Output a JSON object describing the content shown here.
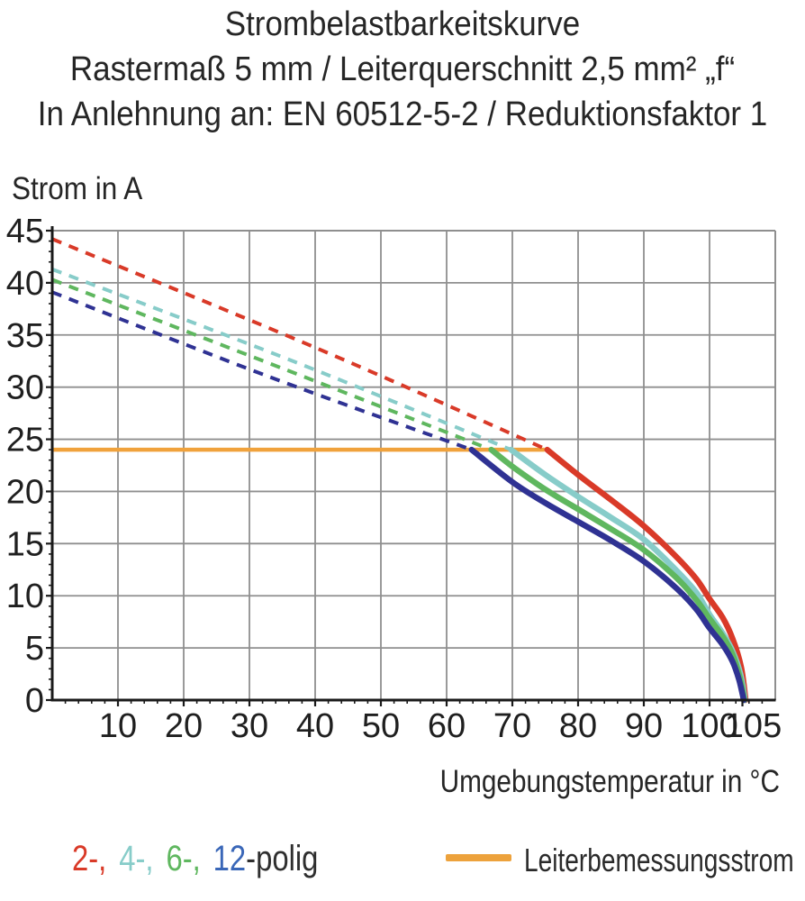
{
  "title": {
    "line1": "Strombelastbarkeitskurve",
    "line2": "Rastermaß 5 mm / Leiterquerschnitt 2,5 mm² „f“",
    "line3": "In Anlehnung an: EN 60512-5-2 / Reduktionsfaktor 1"
  },
  "axis": {
    "y_label": "Strom in A",
    "x_label": "Umgebungstemperatur in °C"
  },
  "legend": {
    "poles": [
      {
        "label": "2-,",
        "color": "#d93a28"
      },
      {
        "label": "4-,",
        "color": "#87ccc9"
      },
      {
        "label": "6-,",
        "color": "#5fb75f"
      },
      {
        "label": "12",
        "color": "#3a67b8"
      },
      {
        "label": "-polig",
        "color": "#2f2f2f"
      }
    ],
    "rated": {
      "label": "Leiterbemessungsstrom",
      "swatch_color": "#eda23c"
    }
  },
  "chart_data": {
    "type": "line",
    "title": "Strombelastbarkeitskurve",
    "xlabel": "Umgebungstemperatur in °C",
    "ylabel": "Strom in A",
    "xlim": [
      0,
      110
    ],
    "ylim": [
      0,
      45
    ],
    "x_ticks": [
      10,
      20,
      30,
      40,
      50,
      60,
      70,
      80,
      90,
      100,
      105
    ],
    "x_minor_step": 2,
    "y_ticks": [
      0,
      5,
      10,
      15,
      20,
      25,
      30,
      35,
      40,
      45
    ],
    "y_minor_step": 1,
    "grid": {
      "x_step": 10,
      "y_step": 5,
      "color": "#8f8f8f"
    },
    "axis_color": "#1a1a1a",
    "tick_label_color": "#1f1f1f",
    "legend_position": "bottom",
    "rated_current_line": {
      "label": "Leiterbemessungsstrom",
      "value_a": 24,
      "x_start_c": 0,
      "x_end_c": 74.9,
      "color": "#f0a23c"
    },
    "series": [
      {
        "name": "2-polig",
        "color": "#d93a28",
        "dashed_points": [
          [
            0,
            44.2
          ],
          [
            40,
            33.8
          ],
          [
            75.3,
            24
          ]
        ],
        "solid_points": [
          [
            75.3,
            24
          ],
          [
            80,
            21.6
          ],
          [
            85,
            19.2
          ],
          [
            90,
            16.7
          ],
          [
            95,
            13.7
          ],
          [
            98,
            11.6
          ],
          [
            100,
            9.7
          ],
          [
            102,
            7.9
          ],
          [
            103.5,
            5.9
          ],
          [
            104.8,
            3.2
          ],
          [
            105.5,
            0
          ]
        ]
      },
      {
        "name": "4-polig",
        "color": "#87ccc9",
        "dashed_points": [
          [
            0,
            41.3
          ],
          [
            37,
            32.4
          ],
          [
            69.8,
            24
          ]
        ],
        "solid_points": [
          [
            69.8,
            24
          ],
          [
            75,
            21.6
          ],
          [
            80,
            19.5
          ],
          [
            85,
            17.5
          ],
          [
            90,
            15.4
          ],
          [
            95,
            12.4
          ],
          [
            98,
            10.3
          ],
          [
            100,
            8.2
          ],
          [
            102,
            6.4
          ],
          [
            103.5,
            4.7
          ],
          [
            104.7,
            2.5
          ],
          [
            105.4,
            0
          ]
        ]
      },
      {
        "name": "6-polig",
        "color": "#5fb75f",
        "dashed_points": [
          [
            0,
            40.3
          ],
          [
            35,
            31.8
          ],
          [
            66.8,
            24
          ]
        ],
        "solid_points": [
          [
            66.8,
            24
          ],
          [
            70,
            22.4
          ],
          [
            75,
            20.2
          ],
          [
            80,
            18.3
          ],
          [
            85,
            16.4
          ],
          [
            90,
            14.4
          ],
          [
            95,
            11.7
          ],
          [
            98,
            9.6
          ],
          [
            100,
            7.8
          ],
          [
            102,
            6.1
          ],
          [
            103.5,
            4.4
          ],
          [
            104.6,
            2.2
          ],
          [
            105.3,
            0
          ]
        ]
      },
      {
        "name": "12-polig",
        "color": "#2f3293",
        "dashed_points": [
          [
            0,
            39.1
          ],
          [
            33,
            31.0
          ],
          [
            63.8,
            24
          ]
        ],
        "solid_points": [
          [
            63.8,
            24
          ],
          [
            70,
            20.9
          ],
          [
            75,
            18.9
          ],
          [
            80,
            17.1
          ],
          [
            85,
            15.3
          ],
          [
            90,
            13.3
          ],
          [
            95,
            10.7
          ],
          [
            98,
            8.7
          ],
          [
            100,
            6.9
          ],
          [
            102,
            5.3
          ],
          [
            103.5,
            3.7
          ],
          [
            104.5,
            1.9
          ],
          [
            105.2,
            0
          ]
        ]
      }
    ]
  }
}
